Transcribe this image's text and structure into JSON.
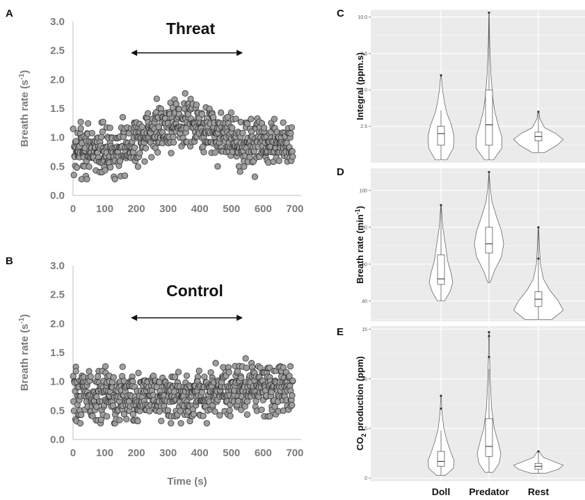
{
  "chart_data": [
    {
      "panel": "A",
      "type": "scatter",
      "title": "Threat",
      "xlabel": "",
      "ylabel": "Breath rate (s",
      "ylabel_sup": "-1",
      "ylabel_end": ")",
      "xlim": [
        0,
        720
      ],
      "ylim": [
        0,
        3
      ],
      "xticks": [
        "0",
        "100",
        "200",
        "300",
        "400",
        "500",
        "600",
        "700"
      ],
      "yticks": [
        "0.0",
        "0.5",
        "1.0",
        "1.5",
        "2.0",
        "2.5",
        "3.0"
      ],
      "arrow_range": [
        200,
        525
      ],
      "marker_color": "#9e9e9e",
      "profile": [
        [
          0,
          0.78
        ],
        [
          150,
          0.8
        ],
        [
          200,
          0.95
        ],
        [
          270,
          1.18
        ],
        [
          330,
          1.28
        ],
        [
          380,
          1.25
        ],
        [
          430,
          1.12
        ],
        [
          500,
          1.0
        ],
        [
          550,
          0.88
        ],
        [
          720,
          0.85
        ]
      ]
    },
    {
      "panel": "B",
      "type": "scatter",
      "title": "Control",
      "xlabel": "Time (s)",
      "ylabel": "Breath rate (s",
      "ylabel_sup": "-1",
      "ylabel_end": ")",
      "xlim": [
        0,
        720
      ],
      "ylim": [
        0,
        3
      ],
      "xticks": [
        "0",
        "100",
        "200",
        "300",
        "400",
        "500",
        "600",
        "700"
      ],
      "yticks": [
        "0.0",
        "0.5",
        "1.0",
        "1.5",
        "2.0",
        "2.5",
        "3.0"
      ],
      "arrow_range": [
        200,
        525
      ],
      "marker_color": "#9e9e9e",
      "profile": [
        [
          0,
          0.75
        ],
        [
          200,
          0.78
        ],
        [
          300,
          0.72
        ],
        [
          400,
          0.72
        ],
        [
          500,
          0.85
        ],
        [
          600,
          0.92
        ],
        [
          720,
          0.88
        ]
      ]
    },
    {
      "panel": "C",
      "type": "violin",
      "ylabel": "Integral (ppm.s)",
      "ylim": [
        0,
        10.5
      ],
      "yticks": [
        2.5,
        5.0,
        7.5,
        10.0
      ],
      "ytick_labels": [
        "2.5",
        "5.0",
        "7.5",
        "10.0"
      ],
      "categories": [
        "Doll",
        "Predator",
        "Rest"
      ],
      "groups": [
        {
          "min": 0.2,
          "q1": 1.2,
          "median": 2.0,
          "q3": 2.5,
          "max": 3.6,
          "outliers": [
            6.0
          ],
          "max_width": 0.55,
          "shape": [
            [
              0.2,
              0.45
            ],
            [
              1.0,
              0.95
            ],
            [
              1.8,
              1.0
            ],
            [
              2.6,
              0.8
            ],
            [
              3.4,
              0.45
            ],
            [
              4.2,
              0.25
            ],
            [
              5.0,
              0.12
            ],
            [
              6.0,
              0.02
            ]
          ]
        },
        {
          "min": 0.2,
          "q1": 1.2,
          "median": 2.6,
          "q3": 5.0,
          "max": 10.3,
          "outliers": [
            10.3
          ],
          "max_width": 0.55,
          "shape": [
            [
              0.2,
              0.35
            ],
            [
              1.0,
              1.0
            ],
            [
              1.8,
              0.98
            ],
            [
              2.6,
              0.7
            ],
            [
              3.5,
              0.45
            ],
            [
              4.5,
              0.28
            ],
            [
              6.0,
              0.15
            ],
            [
              8.0,
              0.06
            ],
            [
              10.3,
              0.01
            ]
          ]
        },
        {
          "min": 0.7,
          "q1": 1.5,
          "median": 1.8,
          "q3": 2.1,
          "max": 3.5,
          "outliers": [
            3.5
          ],
          "max_width": 1.05,
          "shape": [
            [
              0.7,
              0.25
            ],
            [
              1.2,
              0.75
            ],
            [
              1.6,
              1.0
            ],
            [
              2.0,
              0.7
            ],
            [
              2.4,
              0.25
            ],
            [
              3.0,
              0.06
            ],
            [
              3.5,
              0.02
            ]
          ]
        }
      ]
    },
    {
      "panel": "D",
      "type": "violin",
      "ylabel": "Breath rate (min",
      "ylabel_sup": "-1",
      "ylabel_end": ")",
      "ylim": [
        29,
        112
      ],
      "yticks": [
        40,
        60,
        80,
        100
      ],
      "ytick_labels": [
        "40",
        "60",
        "80",
        "100"
      ],
      "categories": [
        "Doll",
        "Predator",
        "Rest"
      ],
      "groups": [
        {
          "min": 40,
          "q1": 49,
          "median": 52,
          "q3": 65,
          "max": 92,
          "outliers": [
            92
          ],
          "max_width": 0.5,
          "shape": [
            [
              40,
              0.3
            ],
            [
              45,
              0.75
            ],
            [
              50,
              1.0
            ],
            [
              55,
              0.85
            ],
            [
              62,
              0.55
            ],
            [
              70,
              0.38
            ],
            [
              80,
              0.15
            ],
            [
              92,
              0.02
            ]
          ]
        },
        {
          "min": 50,
          "q1": 66,
          "median": 71,
          "q3": 80,
          "max": 110,
          "outliers": [
            110
          ],
          "max_width": 0.62,
          "shape": [
            [
              50,
              0.08
            ],
            [
              56,
              0.35
            ],
            [
              64,
              0.85
            ],
            [
              71,
              1.0
            ],
            [
              78,
              0.85
            ],
            [
              86,
              0.5
            ],
            [
              94,
              0.2
            ],
            [
              102,
              0.07
            ],
            [
              110,
              0.01
            ]
          ]
        },
        {
          "min": 30,
          "q1": 37,
          "median": 41,
          "q3": 45,
          "max": 80,
          "outliers": [
            80,
            63
          ],
          "max_width": 1.05,
          "shape": [
            [
              30,
              0.55
            ],
            [
              35,
              1.0
            ],
            [
              40,
              0.8
            ],
            [
              46,
              0.45
            ],
            [
              52,
              0.2
            ],
            [
              60,
              0.08
            ],
            [
              70,
              0.04
            ],
            [
              80,
              0.01
            ]
          ]
        }
      ]
    },
    {
      "panel": "E",
      "type": "violin",
      "ylabel": "CO",
      "ylabel_sub": "2",
      "ylabel_end": " production (ppm)",
      "xlabel_categories_shown": true,
      "ylim": [
        -0.3,
        15.3
      ],
      "yticks": [
        0,
        5,
        10,
        15
      ],
      "ytick_labels": [
        "0",
        "5",
        "10",
        "15"
      ],
      "categories": [
        "Doll",
        "Predator",
        "Rest"
      ],
      "groups": [
        {
          "min": 0.3,
          "q1": 1.2,
          "median": 1.7,
          "q3": 2.7,
          "max": 4.8,
          "outliers": [
            8.3,
            7.0
          ],
          "max_width": 0.55,
          "shape": [
            [
              0.3,
              0.35
            ],
            [
              1.0,
              0.95
            ],
            [
              1.8,
              1.0
            ],
            [
              2.8,
              0.7
            ],
            [
              3.8,
              0.45
            ],
            [
              5.0,
              0.22
            ],
            [
              6.5,
              0.08
            ],
            [
              8.3,
              0.01
            ]
          ]
        },
        {
          "min": 0.6,
          "q1": 2.2,
          "median": 3.2,
          "q3": 6.0,
          "max": 11.0,
          "outliers": [
            14.7,
            14.3,
            12.2
          ],
          "max_width": 0.5,
          "shape": [
            [
              0.6,
              0.35
            ],
            [
              1.5,
              0.85
            ],
            [
              2.5,
              1.0
            ],
            [
              3.5,
              0.8
            ],
            [
              5.0,
              0.45
            ],
            [
              7.0,
              0.22
            ],
            [
              9.5,
              0.12
            ],
            [
              12.0,
              0.05
            ],
            [
              14.7,
              0.01
            ]
          ]
        },
        {
          "min": 0.5,
          "q1": 0.9,
          "median": 1.2,
          "q3": 1.5,
          "max": 2.7,
          "outliers": [
            2.7
          ],
          "max_width": 1.05,
          "shape": [
            [
              0.5,
              0.3
            ],
            [
              0.9,
              0.8
            ],
            [
              1.3,
              1.0
            ],
            [
              1.7,
              0.6
            ],
            [
              2.1,
              0.2
            ],
            [
              2.7,
              0.03
            ]
          ]
        }
      ]
    }
  ]
}
